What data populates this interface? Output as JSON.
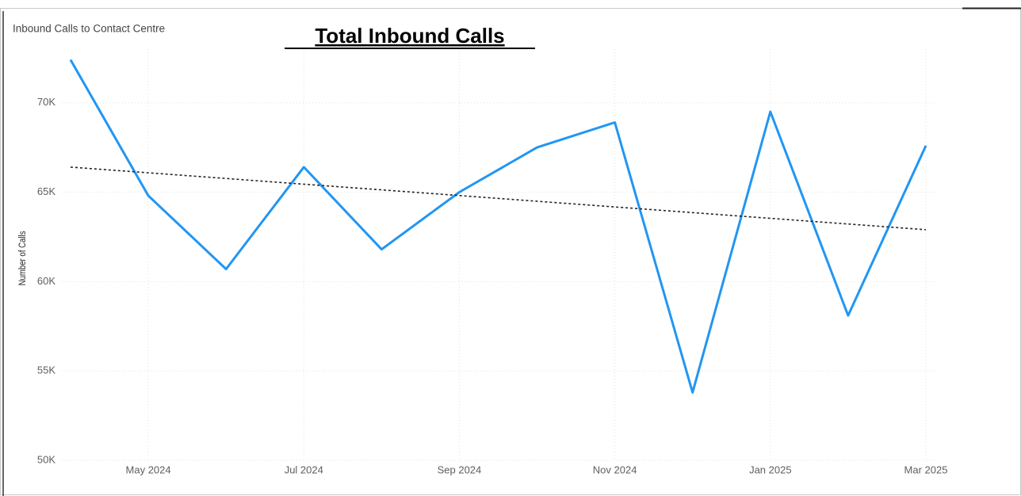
{
  "chart_data": {
    "type": "line",
    "subtitle": "Inbound Calls to Contact Centre",
    "title": "Total Inbound Calls",
    "y_label": "Number of Calls",
    "categories": [
      null,
      "May 2024",
      null,
      "Jul 2024",
      null,
      "Sep 2024",
      null,
      "Nov 2024",
      null,
      "Jan 2025",
      null,
      "Mar 2025"
    ],
    "series": [
      {
        "color": "#2196f3",
        "values": [
          72400,
          64800,
          60700,
          66400,
          61800,
          65000,
          67500,
          68900,
          53800,
          69500,
          58100,
          67600
        ]
      }
    ],
    "trendline": {
      "color": "#222222",
      "values": [
        66400,
        62900
      ]
    },
    "ylim": [
      50000,
      73000
    ],
    "yticks": [
      {
        "value": 50000,
        "label": "50K"
      },
      {
        "value": 55000,
        "label": "55K"
      },
      {
        "value": 60000,
        "label": "60K"
      },
      {
        "value": 65000,
        "label": "65K"
      },
      {
        "value": 70000,
        "label": "70K"
      }
    ],
    "grid": true
  }
}
